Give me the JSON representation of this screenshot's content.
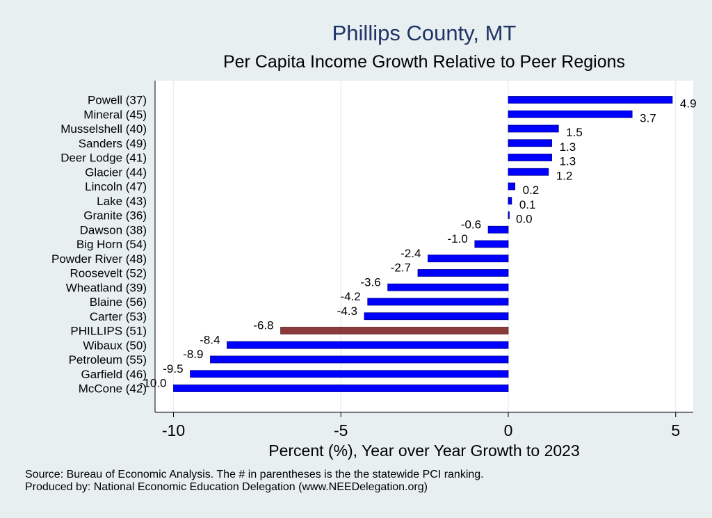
{
  "chart_data": {
    "type": "bar",
    "orientation": "horizontal",
    "title": "Phillips County, MT",
    "subtitle": "Per Capita Income Growth Relative to Peer Regions",
    "xlabel": "Percent (%), Year over Year Growth to 2023",
    "ylabel": "",
    "xlim": [
      -10.5,
      5.5
    ],
    "xticks": [
      -10,
      -5,
      0,
      5
    ],
    "xtick_labels": [
      "-10",
      "-5",
      "0",
      "5"
    ],
    "grid": true,
    "categories": [
      "Powell (37)",
      "Mineral (45)",
      "Musselshell (40)",
      "Sanders (49)",
      "Deer Lodge (41)",
      "Glacier (44)",
      "Lincoln (47)",
      "Lake (43)",
      "Granite (36)",
      "Dawson (38)",
      "Big Horn (54)",
      "Powder River (48)",
      "Roosevelt (52)",
      "Wheatland (39)",
      "Blaine (56)",
      "Carter (53)",
      "PHILLIPS (51)",
      "Wibaux (50)",
      "Petroleum (55)",
      "Garfield (46)",
      "McCone (42)"
    ],
    "values": [
      4.9,
      3.7,
      1.5,
      1.3,
      1.3,
      1.2,
      0.2,
      0.1,
      0.0,
      -0.6,
      -1.0,
      -2.4,
      -2.7,
      -3.6,
      -4.2,
      -4.3,
      -6.8,
      -8.4,
      -8.9,
      -9.5,
      -10.0
    ],
    "value_labels": [
      "4.9",
      "3.7",
      "1.5",
      "1.3",
      "1.3",
      "1.2",
      "0.2",
      "0.1",
      "0.0",
      "-0.6",
      "-1.0",
      "-2.4",
      "-2.7",
      "-3.6",
      "-4.2",
      "-4.3",
      "-6.8",
      "-8.4",
      "-8.9",
      "-9.5",
      "-10.0"
    ],
    "highlight": "PHILLIPS (51)",
    "colors": {
      "bar": "#0000ff",
      "highlight": "#8b3a3a",
      "title": "#1e3366",
      "background": "#e8eff1",
      "plot_background": "#ffffff",
      "grid": "#e8eff1"
    }
  },
  "notes": {
    "source": "Source: Bureau of Economic Analysis. The # in parentheses is the the statewide PCI ranking.",
    "produced_by": "Produced by: National Economic Education Delegation (www.NEEDelegation.org)"
  }
}
